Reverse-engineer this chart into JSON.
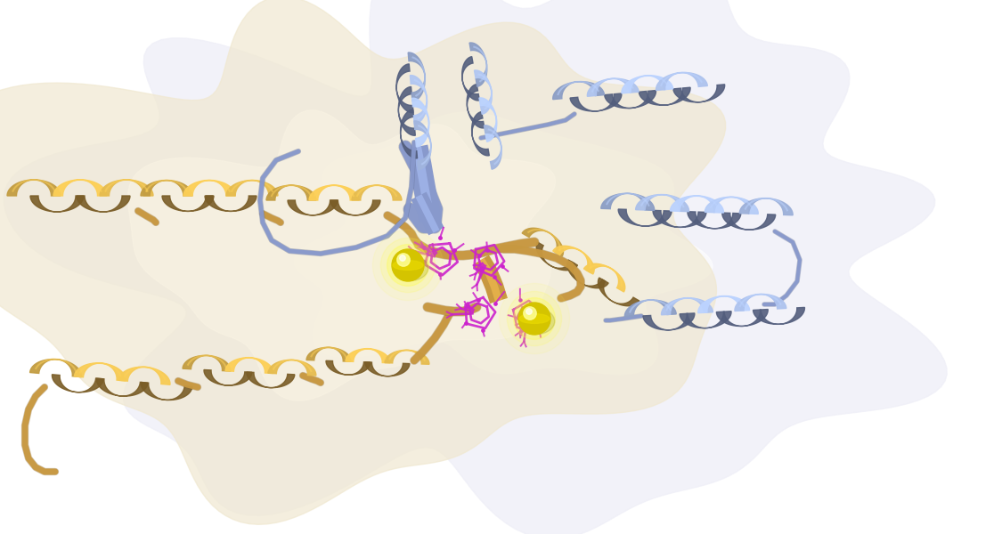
{
  "bg_color": "#ffffff",
  "chain_blue_color": "#8899cc",
  "chain_blue_dark": "#6677aa",
  "chain_blue_light": "#aabbdd",
  "chain_orange_color": "#c89840",
  "chain_orange_dark": "#a07820",
  "chain_orange_light": "#e0b860",
  "surface_blue_color": "#dde0f0",
  "surface_orange_color": "#f5edd8",
  "surface_white_color": "#f0f0f8",
  "ctp_color": "#cc22cc",
  "mg_color": "#dddd00",
  "mg_highlight": "#ffff88",
  "mg_dark": "#aaaa00"
}
